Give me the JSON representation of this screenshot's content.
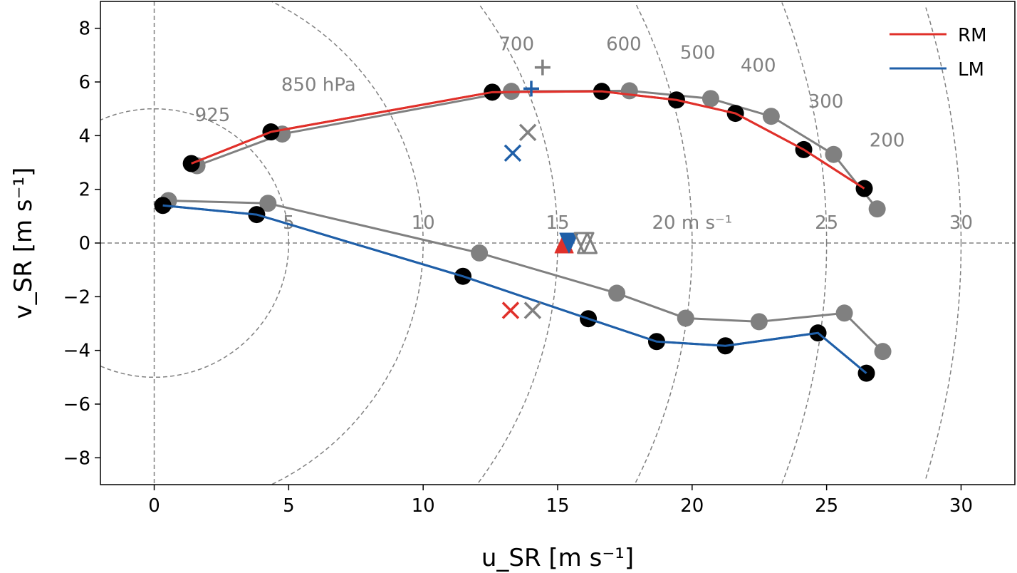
{
  "chart_data": {
    "type": "line",
    "xlabel": "u_SR [m s⁻¹]",
    "ylabel": "v_SR [m s⁻¹]",
    "xlim": [
      -2,
      32
    ],
    "ylim": [
      -9,
      9
    ],
    "xticks": [
      0,
      5,
      10,
      15,
      20,
      25,
      30
    ],
    "yticks": [
      -8,
      -6,
      -4,
      -2,
      0,
      2,
      4,
      6,
      8
    ],
    "ytick_labels": [
      "−8",
      "−6",
      "−4",
      "−2",
      "0",
      "2",
      "4",
      "6",
      "8"
    ],
    "legend": {
      "placement": "top-right",
      "entries": [
        "RM",
        "LM"
      ]
    },
    "colors": {
      "RM": "#e0302a",
      "LM": "#1f5fa8",
      "gray": "#808080",
      "black": "#000000"
    },
    "range_rings": [
      5,
      10,
      15,
      20,
      25,
      30
    ],
    "ring_labels": [
      "5",
      "10",
      "15",
      "20 m s⁻¹",
      "25",
      "30"
    ],
    "pressure_labels": [
      {
        "text": "925",
        "x": 2.17,
        "y": 4.78
      },
      {
        "text": "850 hPa",
        "x": 6.11,
        "y": 5.91
      },
      {
        "text": "700",
        "x": 13.47,
        "y": 7.42
      },
      {
        "text": "600",
        "x": 17.46,
        "y": 7.42
      },
      {
        "text": "500",
        "x": 20.21,
        "y": 7.1
      },
      {
        "text": "400",
        "x": 22.46,
        "y": 6.62
      },
      {
        "text": "300",
        "x": 24.97,
        "y": 5.28
      },
      {
        "text": "200",
        "x": 27.25,
        "y": 3.83
      }
    ],
    "series": [
      {
        "name": "RM",
        "color": "#e0302a",
        "marker": "#000000",
        "x": [
          1.38,
          4.34,
          12.57,
          16.64,
          19.42,
          21.61,
          24.15,
          26.4
        ],
        "y": [
          2.96,
          4.14,
          5.62,
          5.65,
          5.33,
          4.83,
          3.48,
          2.03
        ]
      },
      {
        "color": "#808080",
        "marker": "#808080",
        "x": [
          1.59,
          4.76,
          13.28,
          17.67,
          20.69,
          22.94,
          25.26,
          26.88
        ],
        "y": [
          2.88,
          4.06,
          5.65,
          5.67,
          5.38,
          4.72,
          3.3,
          1.27
        ]
      },
      {
        "name": "LM",
        "color": "#1f5fa8",
        "marker": "#000000",
        "x": [
          0.32,
          3.81,
          11.48,
          16.14,
          18.68,
          21.24,
          24.68,
          26.48
        ],
        "y": [
          1.4,
          1.06,
          -1.24,
          -2.82,
          -3.67,
          -3.83,
          -3.35,
          -4.85
        ]
      },
      {
        "color": "#808080",
        "marker": "#808080",
        "x": [
          0.53,
          4.23,
          12.09,
          17.2,
          19.76,
          22.49,
          25.66,
          27.09
        ],
        "y": [
          1.58,
          1.48,
          -0.37,
          -1.87,
          -2.8,
          -2.93,
          -2.61,
          -4.04
        ]
      }
    ],
    "markers": [
      {
        "symbol": "plus",
        "color": "#1f5fa8",
        "x": 14.02,
        "y": 5.75
      },
      {
        "symbol": "plus",
        "color": "#808080",
        "x": 14.44,
        "y": 6.54
      },
      {
        "symbol": "cross",
        "color": "#1f5fa8",
        "x": 13.33,
        "y": 3.35
      },
      {
        "symbol": "cross",
        "color": "#808080",
        "x": 13.89,
        "y": 4.12
      },
      {
        "symbol": "cross",
        "color": "#e0302a",
        "x": 13.25,
        "y": -2.51
      },
      {
        "symbol": "cross",
        "color": "#808080",
        "x": 14.07,
        "y": -2.51
      },
      {
        "symbol": "triangle-up",
        "color": "#e0302a",
        "x": 15.24,
        "y": 0
      },
      {
        "symbol": "triangle-down",
        "color": "#1f5fa8",
        "x": 15.42,
        "y": 0
      },
      {
        "symbol": "triangle-down-open",
        "color": "#808080",
        "x": 15.98,
        "y": 0
      },
      {
        "symbol": "triangle-up-open",
        "color": "#808080",
        "x": 16.1,
        "y": 0
      }
    ]
  }
}
